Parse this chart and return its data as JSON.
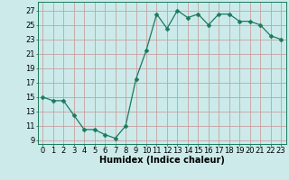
{
  "x": [
    0,
    1,
    2,
    3,
    4,
    5,
    6,
    7,
    8,
    9,
    10,
    11,
    12,
    13,
    14,
    15,
    16,
    17,
    18,
    19,
    20,
    21,
    22,
    23
  ],
  "y": [
    15,
    14.5,
    14.5,
    12.5,
    10.5,
    10.5,
    9.8,
    9.3,
    11.0,
    17.5,
    21.5,
    26.5,
    24.5,
    27.0,
    26.0,
    26.5,
    25.0,
    26.5,
    26.5,
    25.5,
    25.5,
    25.0,
    23.5,
    23.0
  ],
  "xlabel": "Humidex (Indice chaleur)",
  "ylabel_ticks": [
    9,
    11,
    13,
    15,
    17,
    19,
    21,
    23,
    25,
    27
  ],
  "xlim": [
    -0.5,
    23.5
  ],
  "ylim": [
    8.5,
    28.2
  ],
  "line_color": "#1a7a5e",
  "marker": "D",
  "marker_size": 2.5,
  "bg_color": "#cceaea",
  "grid_color": "#c8a0a0",
  "tick_fontsize": 6,
  "xlabel_fontsize": 7
}
